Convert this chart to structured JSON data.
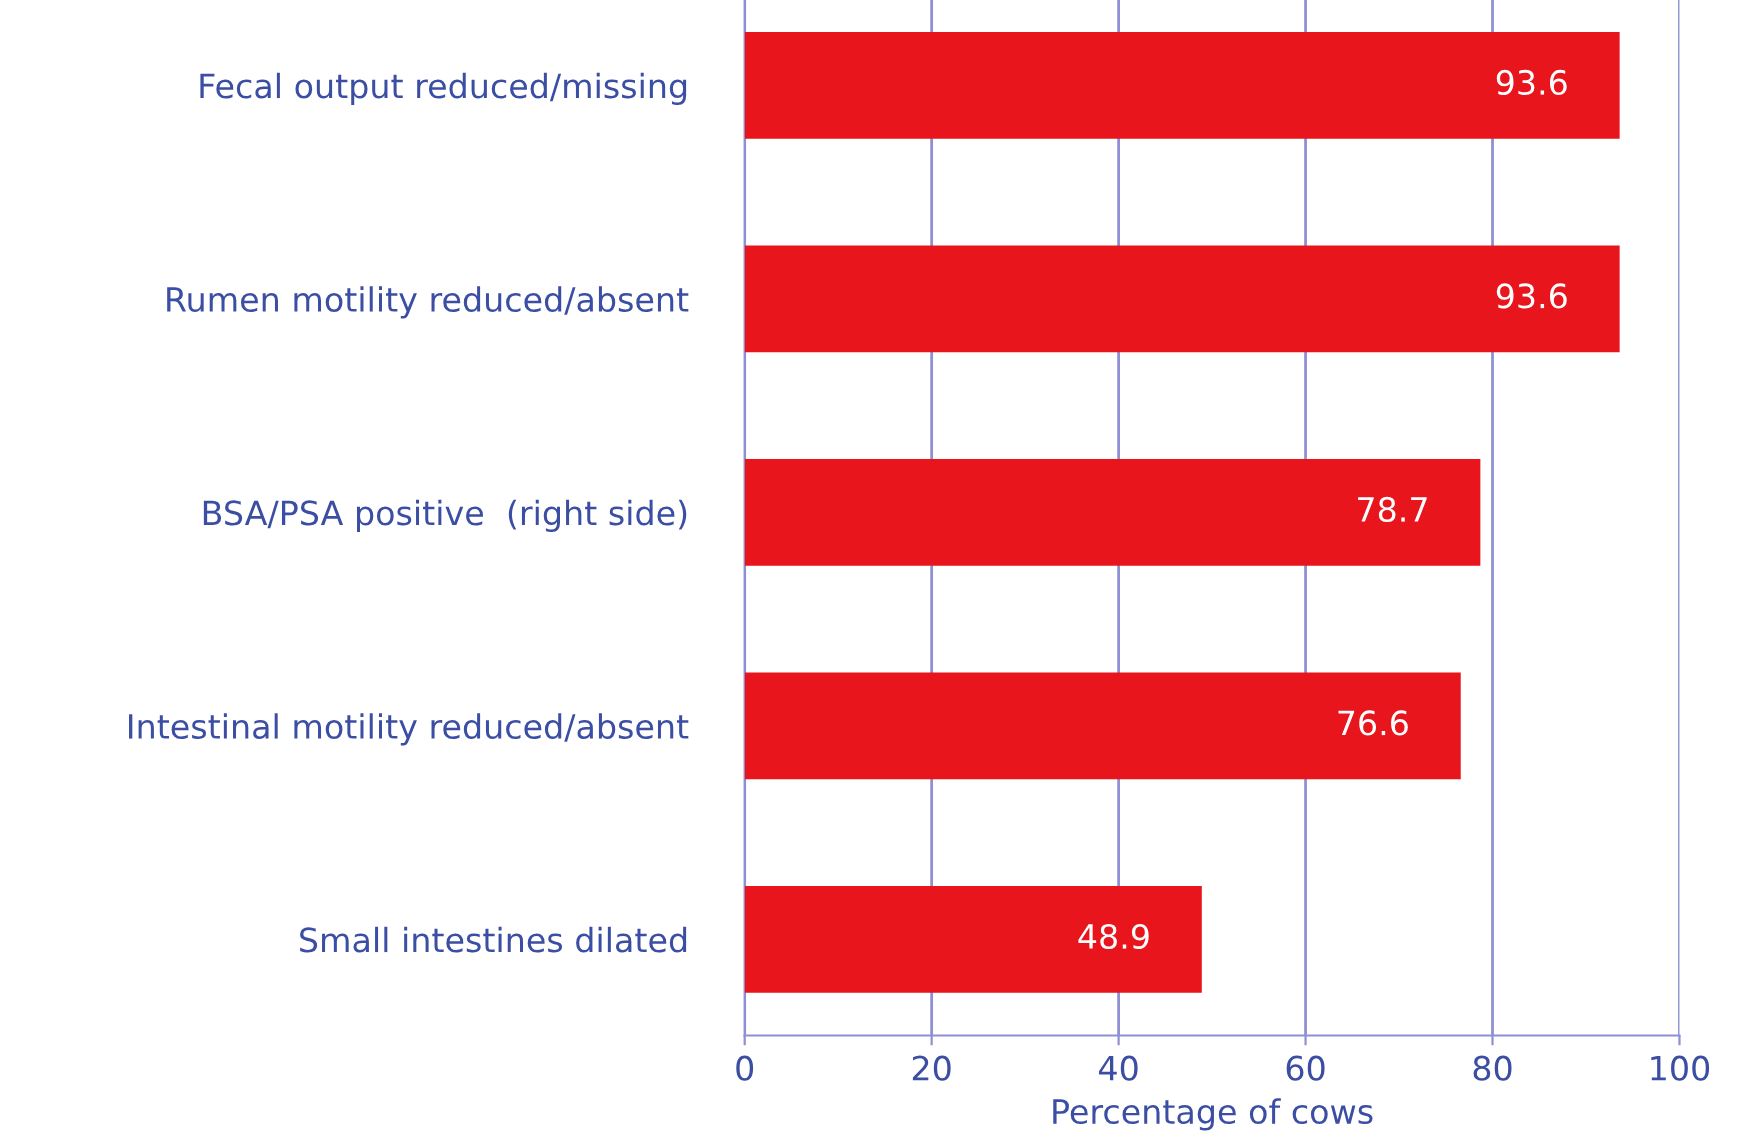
{
  "chart_data": {
    "type": "bar",
    "orientation": "horizontal",
    "xlabel": "Percentage of cows",
    "categories": [
      "Fecal output reduced/missing",
      "Rumen motility reduced/absent",
      "BSA/PSA positive  (right side)",
      "Intestinal motility reduced/absent",
      "Small intestines dilated"
    ],
    "values": [
      93.6,
      93.6,
      78.7,
      76.6,
      48.9
    ],
    "color": "#e8151c",
    "xlim": [
      0,
      100
    ],
    "xticks": [
      0,
      20,
      40,
      60,
      80,
      100
    ],
    "grid": "x",
    "data_labels": true
  }
}
